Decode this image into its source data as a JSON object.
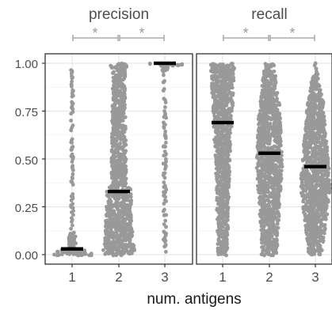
{
  "chart_data": {
    "type": "beeswarm",
    "xlabel": "num. antigens",
    "ylabel": "",
    "ylim": [
      0,
      1
    ],
    "y_ticks": [
      "0.00",
      "0.25",
      "0.50",
      "0.75",
      "1.00"
    ],
    "y_tick_values": [
      0,
      0.25,
      0.5,
      0.75,
      1
    ],
    "grid": true,
    "point_color": "#999999",
    "median_color": "#000000",
    "bracket_color": "#9a9a9a",
    "panels": [
      {
        "title": "precision",
        "categories": [
          "1",
          "2",
          "3"
        ],
        "medians": [
          0.03,
          0.33,
          1.0
        ],
        "significance": [
          {
            "from": "1",
            "to": "2",
            "label": "*"
          },
          {
            "from": "2",
            "to": "3",
            "label": "*"
          }
        ]
      },
      {
        "title": "recall",
        "categories": [
          "1",
          "2",
          "3"
        ],
        "medians": [
          0.69,
          0.53,
          0.46
        ],
        "significance": [
          {
            "from": "1",
            "to": "2",
            "label": "*"
          },
          {
            "from": "2",
            "to": "3",
            "label": "*"
          }
        ]
      }
    ]
  }
}
